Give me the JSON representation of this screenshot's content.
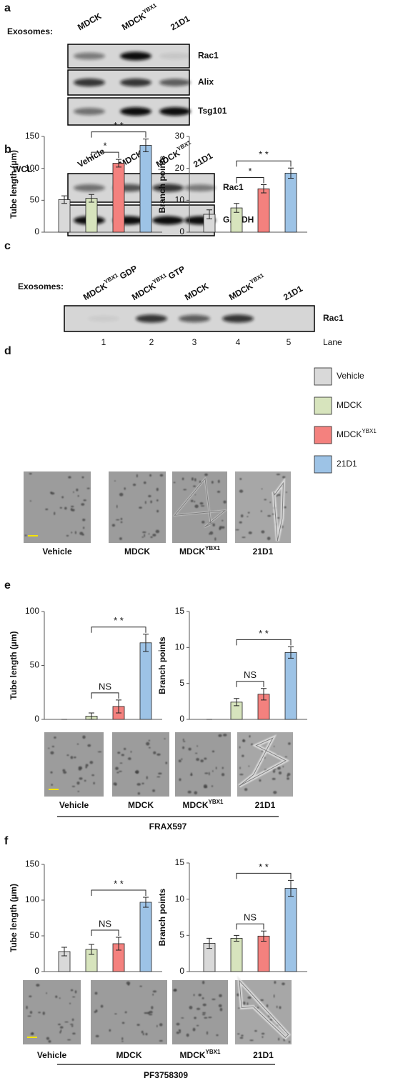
{
  "panels": {
    "a": {
      "label": "a",
      "row_label": "Exosomes:",
      "lanes": [
        "MDCK",
        {
          "text": "MDCK",
          "sup": "YBX1"
        },
        "21D1"
      ],
      "blots": [
        "Rac1",
        "Alix",
        "Tsg101"
      ]
    },
    "b": {
      "label": "b",
      "row_label": "WCL:",
      "lanes": [
        "Vehicle",
        "MDCK",
        {
          "text": "MDCK",
          "sup": "YBX1"
        },
        "21D1"
      ],
      "blots": [
        "Rac1",
        "GAPDH"
      ]
    },
    "c": {
      "label": "c",
      "row_label": "Exosomes:",
      "lanes": [
        {
          "text": "MDCK",
          "sup": "YBX1",
          "suffix": "GDP"
        },
        {
          "text": "MDCK",
          "sup": "YBX1",
          "suffix": "GTP"
        },
        "MDCK",
        {
          "text": "MDCK",
          "sup": "YBX1"
        },
        "21D1"
      ],
      "blots": [
        "Rac1"
      ],
      "lane_numbers": [
        "1",
        "2",
        "3",
        "4",
        "5"
      ],
      "lane_axis": "Lane"
    },
    "d": {
      "label": "d",
      "legend": [
        "Vehicle",
        "MDCK",
        {
          "text": "MDCK",
          "sup": "YBX1"
        },
        "21D1"
      ],
      "images": [
        "Vehicle",
        "MDCK",
        {
          "text": "MDCK",
          "sup": "YBX1"
        },
        "21D1"
      ]
    },
    "e": {
      "label": "e",
      "images": [
        "Vehicle",
        "MDCK",
        {
          "text": "MDCK",
          "sup": "YBX1"
        },
        "21D1"
      ],
      "treatment": "FRAX597"
    },
    "f": {
      "label": "f",
      "images": [
        "Vehicle",
        "MDCK",
        {
          "text": "MDCK",
          "sup": "YBX1"
        },
        "21D1"
      ],
      "treatment": "PF3758309"
    }
  },
  "chart_data": [
    {
      "type": "bar",
      "ylabel": "Tube length (µm)",
      "values": [
        51,
        53,
        108,
        136
      ],
      "errors": [
        6,
        6,
        6,
        10
      ],
      "colors": [
        "#d9d9d9",
        "#d7e4bd",
        "#f4817e",
        "#9dc3e6"
      ],
      "ylim": [
        0,
        150
      ],
      "yticks": [
        0,
        50,
        100,
        150
      ],
      "annotations": [
        "*",
        "* *"
      ]
    },
    {
      "type": "bar",
      "ylabel": "Branch points",
      "values": [
        5.6,
        7.6,
        13.6,
        18.5
      ],
      "errors": [
        1.4,
        1.4,
        1.3,
        1.6
      ],
      "colors": [
        "#d9d9d9",
        "#d7e4bd",
        "#f4817e",
        "#9dc3e6"
      ],
      "ylim": [
        0,
        30
      ],
      "yticks": [
        0,
        10,
        20,
        30
      ],
      "annotations": [
        "*",
        "* *"
      ]
    },
    {
      "type": "bar",
      "ylabel": "Tube length (µm)",
      "values": [
        0,
        3,
        12,
        71
      ],
      "errors": [
        0,
        3,
        6,
        8
      ],
      "colors": [
        "#d9d9d9",
        "#d7e4bd",
        "#f4817e",
        "#9dc3e6"
      ],
      "ylim": [
        0,
        100
      ],
      "yticks": [
        0,
        50,
        100
      ],
      "annotations": [
        "NS",
        "* *"
      ]
    },
    {
      "type": "bar",
      "ylabel": "Branch points",
      "values": [
        0,
        2.4,
        3.5,
        9.3
      ],
      "errors": [
        0,
        0.5,
        0.8,
        0.8
      ],
      "colors": [
        "#d9d9d9",
        "#d7e4bd",
        "#f4817e",
        "#9dc3e6"
      ],
      "ylim": [
        0,
        15
      ],
      "yticks": [
        0,
        5,
        10,
        15
      ],
      "annotations": [
        "NS",
        "* *"
      ]
    },
    {
      "type": "bar",
      "ylabel": "Tube length (µm)",
      "values": [
        28,
        31,
        39,
        97
      ],
      "errors": [
        6,
        7,
        9,
        7
      ],
      "colors": [
        "#d9d9d9",
        "#d7e4bd",
        "#f4817e",
        "#9dc3e6"
      ],
      "ylim": [
        0,
        150
      ],
      "yticks": [
        0,
        50,
        100,
        150
      ],
      "annotations": [
        "NS",
        "* *"
      ]
    },
    {
      "type": "bar",
      "ylabel": "Branch points",
      "values": [
        3.9,
        4.6,
        4.9,
        11.5
      ],
      "errors": [
        0.7,
        0.4,
        0.7,
        1.1
      ],
      "colors": [
        "#d9d9d9",
        "#d7e4bd",
        "#f4817e",
        "#9dc3e6"
      ],
      "ylim": [
        0,
        15
      ],
      "yticks": [
        0,
        5,
        10,
        15
      ],
      "annotations": [
        "NS",
        "* *"
      ]
    }
  ]
}
